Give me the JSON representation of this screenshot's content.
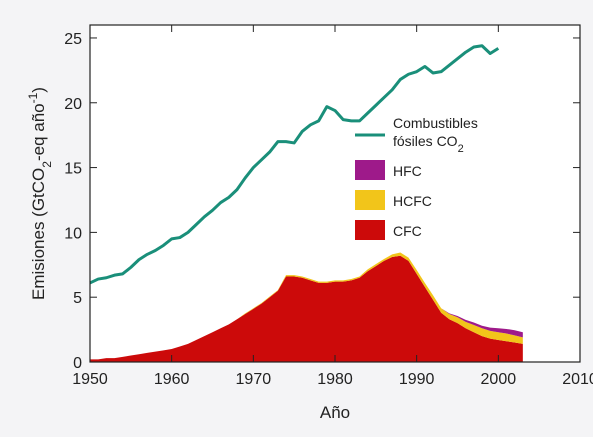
{
  "chart_data": {
    "type": "area",
    "xlabel": "Año",
    "ylabel_parts": [
      "Emisiones (GtCO",
      "2",
      "-eq año",
      "-1",
      ")"
    ],
    "xlim": [
      1950,
      2010
    ],
    "ylim": [
      0,
      26
    ],
    "xticks": [
      1950,
      1960,
      1970,
      1980,
      1990,
      2000,
      2010
    ],
    "yticks": [
      0,
      5,
      10,
      15,
      20,
      25
    ],
    "grid": false,
    "legend_position": "right-center",
    "x": [
      1950,
      1951,
      1952,
      1953,
      1954,
      1955,
      1956,
      1957,
      1958,
      1959,
      1960,
      1961,
      1962,
      1963,
      1964,
      1965,
      1966,
      1967,
      1968,
      1969,
      1970,
      1971,
      1972,
      1973,
      1974,
      1975,
      1976,
      1977,
      1978,
      1979,
      1980,
      1981,
      1982,
      1983,
      1984,
      1985,
      1986,
      1987,
      1988,
      1989,
      1990,
      1991,
      1992,
      1993,
      1994,
      1995,
      1996,
      1997,
      1998,
      1999,
      2000,
      2001,
      2002,
      2003
    ],
    "line_series": {
      "name_parts": [
        "Combustibles",
        "fósiles CO",
        "2"
      ],
      "color": "#1a8f7a",
      "x": [
        1950,
        1951,
        1952,
        1953,
        1954,
        1955,
        1956,
        1957,
        1958,
        1959,
        1960,
        1961,
        1962,
        1963,
        1964,
        1965,
        1966,
        1967,
        1968,
        1969,
        1970,
        1971,
        1972,
        1973,
        1974,
        1975,
        1976,
        1977,
        1978,
        1979,
        1980,
        1981,
        1982,
        1983,
        1984,
        1985,
        1986,
        1987,
        1988,
        1989,
        1990,
        1991,
        1992,
        1993,
        1994,
        1995,
        1996,
        1997,
        1998,
        1999,
        2000
      ],
      "values": [
        6.1,
        6.4,
        6.5,
        6.7,
        6.8,
        7.3,
        7.9,
        8.3,
        8.6,
        9.0,
        9.5,
        9.6,
        10.0,
        10.6,
        11.2,
        11.7,
        12.3,
        12.7,
        13.3,
        14.2,
        15.0,
        15.6,
        16.2,
        17.0,
        17.0,
        16.9,
        17.8,
        18.3,
        18.6,
        19.7,
        19.4,
        18.7,
        18.6,
        18.6,
        19.2,
        19.8,
        20.4,
        21.0,
        21.8,
        22.2,
        22.4,
        22.8,
        22.3,
        22.4,
        22.9,
        23.4,
        23.9,
        24.3,
        24.4,
        23.8,
        24.2
      ]
    },
    "stacked_series": [
      {
        "name": "CFC",
        "color": "#cc0a0a",
        "values": [
          0.2,
          0.2,
          0.3,
          0.3,
          0.4,
          0.5,
          0.6,
          0.7,
          0.8,
          0.9,
          1.0,
          1.2,
          1.4,
          1.7,
          2.0,
          2.3,
          2.6,
          2.9,
          3.3,
          3.7,
          4.1,
          4.5,
          5.0,
          5.5,
          6.6,
          6.6,
          6.5,
          6.3,
          6.1,
          6.1,
          6.2,
          6.2,
          6.3,
          6.5,
          7.0,
          7.4,
          7.8,
          8.1,
          8.2,
          7.8,
          6.8,
          5.8,
          4.8,
          3.8,
          3.3,
          3.0,
          2.6,
          2.3,
          2.0,
          1.8,
          1.7,
          1.6,
          1.5,
          1.4
        ]
      },
      {
        "name": "HCFC",
        "color": "#f2c51a",
        "values": [
          0.0,
          0.0,
          0.0,
          0.0,
          0.0,
          0.0,
          0.0,
          0.0,
          0.0,
          0.0,
          0.0,
          0.0,
          0.0,
          0.0,
          0.0,
          0.0,
          0.0,
          0.0,
          0.0,
          0.05,
          0.05,
          0.05,
          0.05,
          0.05,
          0.1,
          0.1,
          0.1,
          0.1,
          0.1,
          0.1,
          0.1,
          0.1,
          0.1,
          0.1,
          0.15,
          0.15,
          0.15,
          0.2,
          0.25,
          0.25,
          0.3,
          0.3,
          0.35,
          0.35,
          0.4,
          0.45,
          0.5,
          0.55,
          0.6,
          0.6,
          0.6,
          0.6,
          0.55,
          0.5
        ]
      },
      {
        "name": "HFC",
        "color": "#9e1a8a",
        "values": [
          0.0,
          0.0,
          0.0,
          0.0,
          0.0,
          0.0,
          0.0,
          0.0,
          0.0,
          0.0,
          0.0,
          0.0,
          0.0,
          0.0,
          0.0,
          0.0,
          0.0,
          0.0,
          0.0,
          0.0,
          0.0,
          0.0,
          0.0,
          0.0,
          0.0,
          0.0,
          0.0,
          0.0,
          0.0,
          0.0,
          0.0,
          0.0,
          0.0,
          0.0,
          0.0,
          0.0,
          0.0,
          0.0,
          0.0,
          0.0,
          0.0,
          0.0,
          0.0,
          0.0,
          0.05,
          0.1,
          0.15,
          0.2,
          0.2,
          0.25,
          0.3,
          0.35,
          0.4,
          0.4
        ]
      }
    ],
    "legend": [
      {
        "key": "line",
        "label_parts": [
          "Combustibles",
          "fósiles CO",
          "2"
        ],
        "color": "#1a8f7a"
      },
      {
        "key": "HFC",
        "label": "HFC",
        "color": "#9e1a8a"
      },
      {
        "key": "HCFC",
        "label": "HCFC",
        "color": "#f2c51a"
      },
      {
        "key": "CFC",
        "label": "CFC",
        "color": "#cc0a0a"
      }
    ]
  }
}
